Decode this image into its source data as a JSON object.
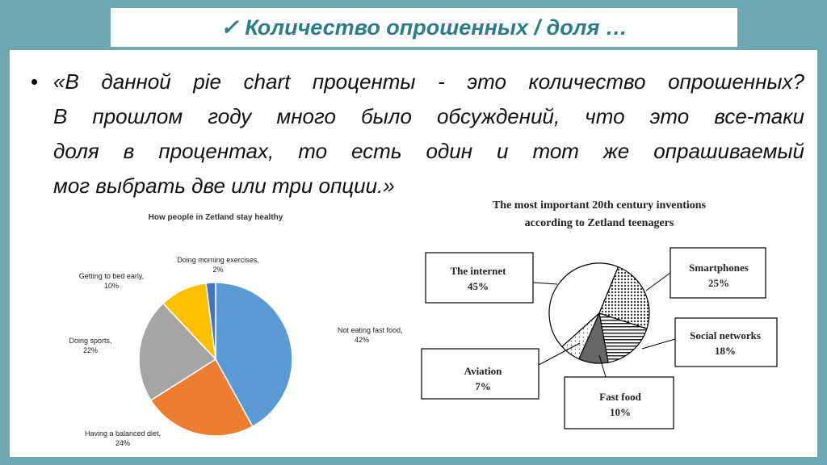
{
  "header": {
    "title": "Количество опрошенных / доля …"
  },
  "bullet": {
    "lines": [
      "«В данной pie chart проценты - это количество опрошенных?",
      "В прошлом году много было обсуждений, что это все-таки",
      "доля в процентах, то есть один и тот же опрашиваемый",
      "мог выбрать две или три опции.»"
    ]
  },
  "chart_data": [
    {
      "type": "pie",
      "title": "How people in Zetland stay healthy",
      "categories": [
        "Not eating fast food,",
        "Having a balanced diet,",
        "Doing sports,",
        "Getting to bed early,",
        "Doing morning exercises,"
      ],
      "values": [
        42,
        24,
        22,
        10,
        2
      ],
      "value_labels": [
        "42%",
        "24%",
        "22%",
        "10%",
        "2%"
      ],
      "colors": [
        "#5b9bd5",
        "#ed7d31",
        "#a5a5a5",
        "#ffc000",
        "#4472c4"
      ]
    },
    {
      "type": "pie",
      "title": [
        "The most important 20th century inventions",
        "according to Zetland teenagers"
      ],
      "categories": [
        "The internet",
        "Smartphones",
        "Social networks",
        "Fast food",
        "Aviation"
      ],
      "values": [
        45,
        25,
        18,
        10,
        7
      ],
      "value_labels": [
        "45%",
        "25%",
        "18%",
        "10%",
        "7%"
      ],
      "colors": [
        "#ffffff",
        "url(#dots)",
        "url(#hstripes)",
        "#666666",
        "url(#lightdots)"
      ]
    }
  ]
}
